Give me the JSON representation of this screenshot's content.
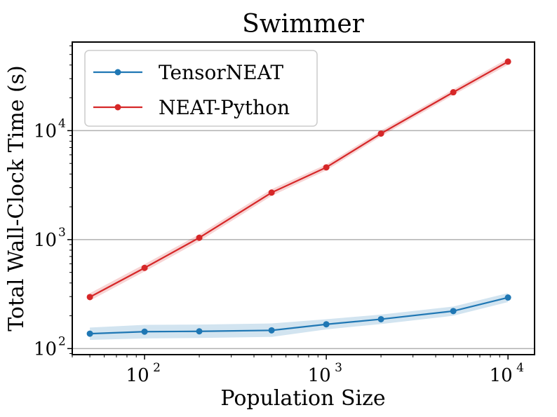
{
  "chart_data": {
    "type": "line",
    "title": "Swimmer",
    "xlabel": "Population Size",
    "ylabel": "Total Wall-Clock Time (s)",
    "xscale": "log",
    "yscale": "log",
    "xlim": [
      40,
      14000
    ],
    "ylim": [
      88,
      65000
    ],
    "x": [
      50,
      100,
      200,
      500,
      1000,
      2000,
      5000,
      10000
    ],
    "x_ticks": [
      {
        "value": 100,
        "base": "10",
        "exp": "2"
      },
      {
        "value": 1000,
        "base": "10",
        "exp": "3"
      },
      {
        "value": 10000,
        "base": "10",
        "exp": "4"
      }
    ],
    "y_ticks": [
      {
        "value": 100,
        "base": "10",
        "exp": "2"
      },
      {
        "value": 1000,
        "base": "10",
        "exp": "3"
      },
      {
        "value": 10000,
        "base": "10",
        "exp": "4"
      }
    ],
    "grid": "y-major",
    "legend_position": "top-left",
    "series": [
      {
        "name": "TensorNEAT",
        "color": "#1f77b4",
        "values": [
          137,
          143,
          144,
          147,
          167,
          186,
          221,
          294
        ],
        "band_low": [
          120,
          124,
          125,
          128,
          150,
          168,
          200,
          267
        ],
        "band_high": [
          156,
          165,
          166,
          170,
          186,
          205,
          243,
          323
        ]
      },
      {
        "name": "NEAT-Python",
        "color": "#d62728",
        "values": [
          297,
          550,
          1040,
          2700,
          4600,
          9400,
          22500,
          43000
        ],
        "band_low": [
          275,
          510,
          965,
          2520,
          4320,
          8850,
          21200,
          40200
        ],
        "band_high": [
          322,
          595,
          1120,
          2900,
          4900,
          10000,
          23900,
          46000
        ]
      }
    ]
  }
}
